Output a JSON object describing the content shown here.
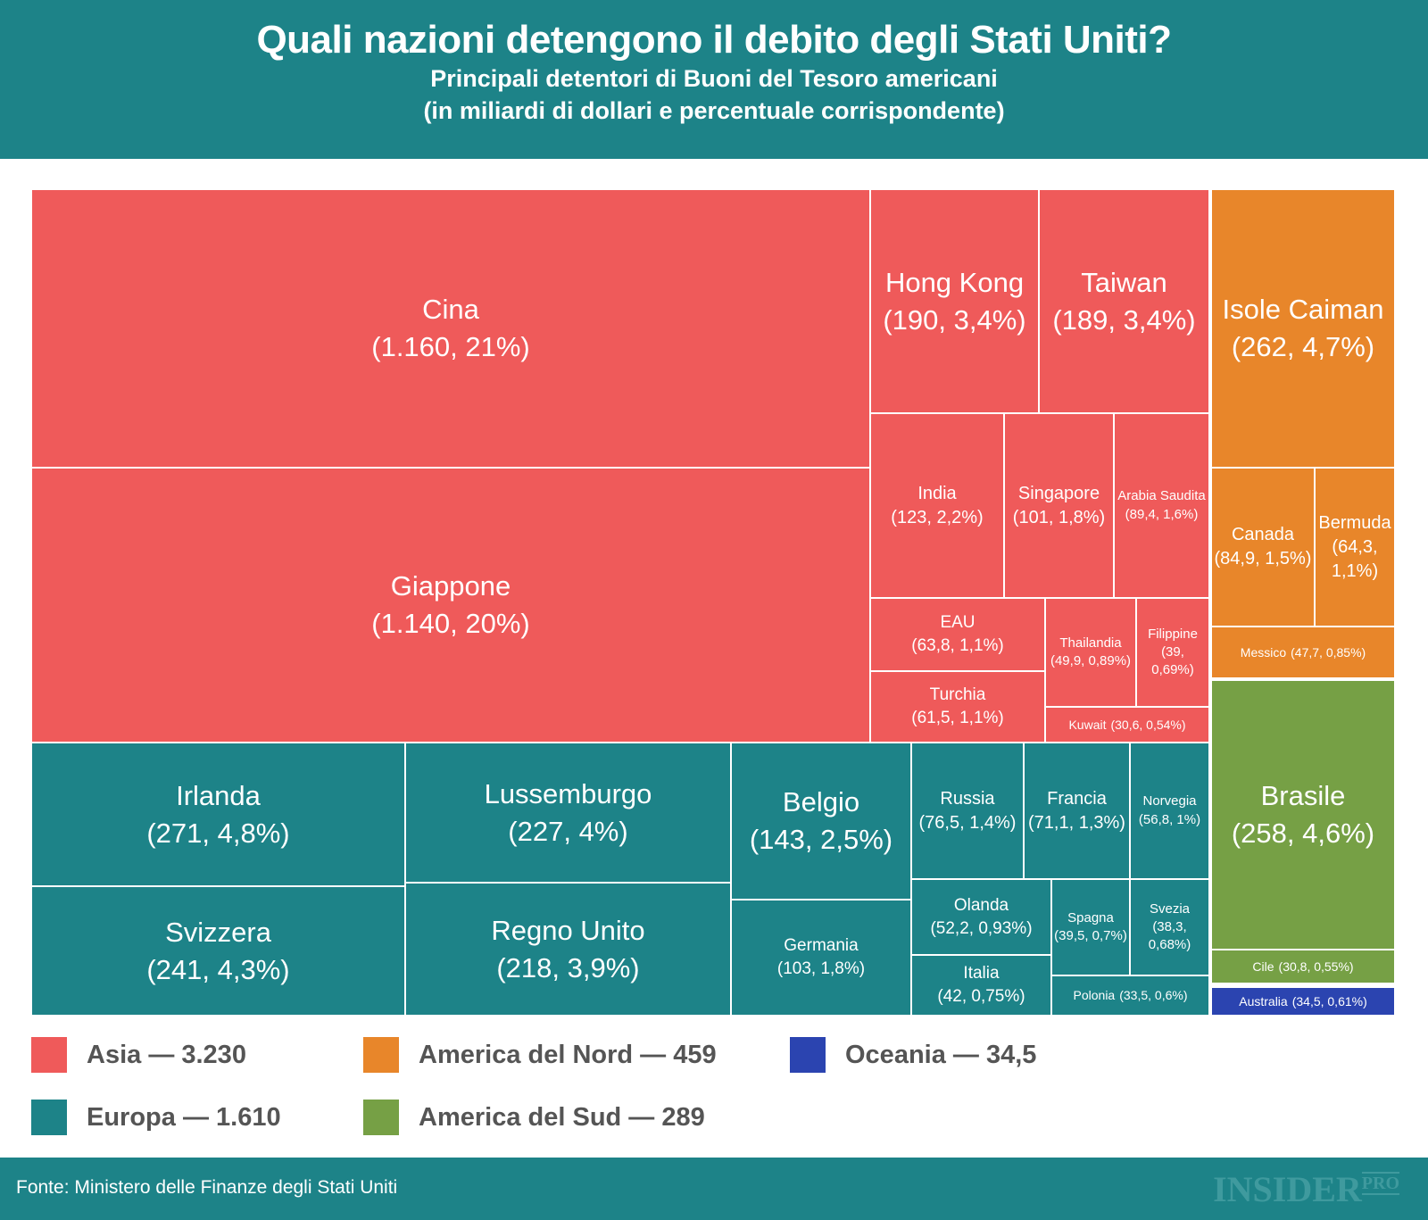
{
  "header": {
    "title": "Quali nazioni detengono il debito degli Stati Uniti?",
    "subtitle1": "Principali detentori di Buoni del Tesoro americani",
    "subtitle2": "(in miliardi di dollari e percentuale corrispondente)"
  },
  "colors": {
    "Asia": "#ef5a5a",
    "Europa": "#1d8388",
    "America del Nord": "#e8862a",
    "America del Sud": "#76a045",
    "Oceania": "#2b44b0"
  },
  "chart_data": {
    "type": "treemap",
    "unit": "miliardi di dollari",
    "items": [
      {
        "name": "Cina",
        "value": "1.160",
        "pct": "21%",
        "region": "Asia"
      },
      {
        "name": "Giappone",
        "value": "1.140",
        "pct": "20%",
        "region": "Asia"
      },
      {
        "name": "Hong Kong",
        "value": "190",
        "pct": "3,4%",
        "region": "Asia"
      },
      {
        "name": "Taiwan",
        "value": "189",
        "pct": "3,4%",
        "region": "Asia"
      },
      {
        "name": "India",
        "value": "123",
        "pct": "2,2%",
        "region": "Asia"
      },
      {
        "name": "Singapore",
        "value": "101",
        "pct": "1,8%",
        "region": "Asia"
      },
      {
        "name": "Arabia Saudita",
        "value": "89,4",
        "pct": "1,6%",
        "region": "Asia"
      },
      {
        "name": "EAU",
        "value": "63,8",
        "pct": "1,1%",
        "region": "Asia"
      },
      {
        "name": "Turchia",
        "value": "61,5",
        "pct": "1,1%",
        "region": "Asia"
      },
      {
        "name": "Thailandia",
        "value": "49,9",
        "pct": "0,89%",
        "region": "Asia"
      },
      {
        "name": "Filippine",
        "value": "39",
        "pct": "0,69%",
        "region": "Asia"
      },
      {
        "name": "Kuwait",
        "value": "30,6",
        "pct": "0,54%",
        "region": "Asia"
      },
      {
        "name": "Irlanda",
        "value": "271",
        "pct": "4,8%",
        "region": "Europa"
      },
      {
        "name": "Svizzera",
        "value": "241",
        "pct": "4,3%",
        "region": "Europa"
      },
      {
        "name": "Lussemburgo",
        "value": "227",
        "pct": "4%",
        "region": "Europa"
      },
      {
        "name": "Regno Unito",
        "value": "218",
        "pct": "3,9%",
        "region": "Europa"
      },
      {
        "name": "Belgio",
        "value": "143",
        "pct": "2,5%",
        "region": "Europa"
      },
      {
        "name": "Germania",
        "value": "103",
        "pct": "1,8%",
        "region": "Europa"
      },
      {
        "name": "Russia",
        "value": "76,5",
        "pct": "1,4%",
        "region": "Europa"
      },
      {
        "name": "Francia",
        "value": "71,1",
        "pct": "1,3%",
        "region": "Europa"
      },
      {
        "name": "Norvegia",
        "value": "56,8",
        "pct": "1%",
        "region": "Europa"
      },
      {
        "name": "Olanda",
        "value": "52,2",
        "pct": "0,93%",
        "region": "Europa"
      },
      {
        "name": "Italia",
        "value": "42",
        "pct": "0,75%",
        "region": "Europa"
      },
      {
        "name": "Spagna",
        "value": "39,5",
        "pct": "0,7%",
        "region": "Europa"
      },
      {
        "name": "Svezia",
        "value": "38,3",
        "pct": "0,68%",
        "region": "Europa"
      },
      {
        "name": "Polonia",
        "value": "33,5",
        "pct": "0,6%",
        "region": "Europa"
      },
      {
        "name": "Isole Caiman",
        "value": "262",
        "pct": "4,7%",
        "region": "America del Nord"
      },
      {
        "name": "Canada",
        "value": "84,9",
        "pct": "1,5%",
        "region": "America del Nord"
      },
      {
        "name": "Bermuda",
        "value": "64,3",
        "pct": "1,1%",
        "region": "America del Nord"
      },
      {
        "name": "Messico",
        "value": "47,7",
        "pct": "0,85%",
        "region": "America del Nord"
      },
      {
        "name": "Brasile",
        "value": "258",
        "pct": "4,6%",
        "region": "America del Sud"
      },
      {
        "name": "Cile",
        "value": "30,8",
        "pct": "0,55%",
        "region": "America del Sud"
      },
      {
        "name": "Australia",
        "value": "34,5",
        "pct": "0,61%",
        "region": "Oceania"
      }
    ],
    "legend": [
      {
        "label": "Asia — 3.230",
        "region": "Asia"
      },
      {
        "label": "Europa — 1.610",
        "region": "Europa"
      },
      {
        "label": "America del Nord — 459",
        "region": "America del Nord"
      },
      {
        "label": "America del Sud — 289",
        "region": "America del Sud"
      },
      {
        "label": "Oceania — 34,5",
        "region": "Oceania"
      }
    ]
  },
  "footer": {
    "source": "Fonte: Ministero delle Finanze degli Stati Uniti",
    "logo": "INSIDER PRO"
  }
}
